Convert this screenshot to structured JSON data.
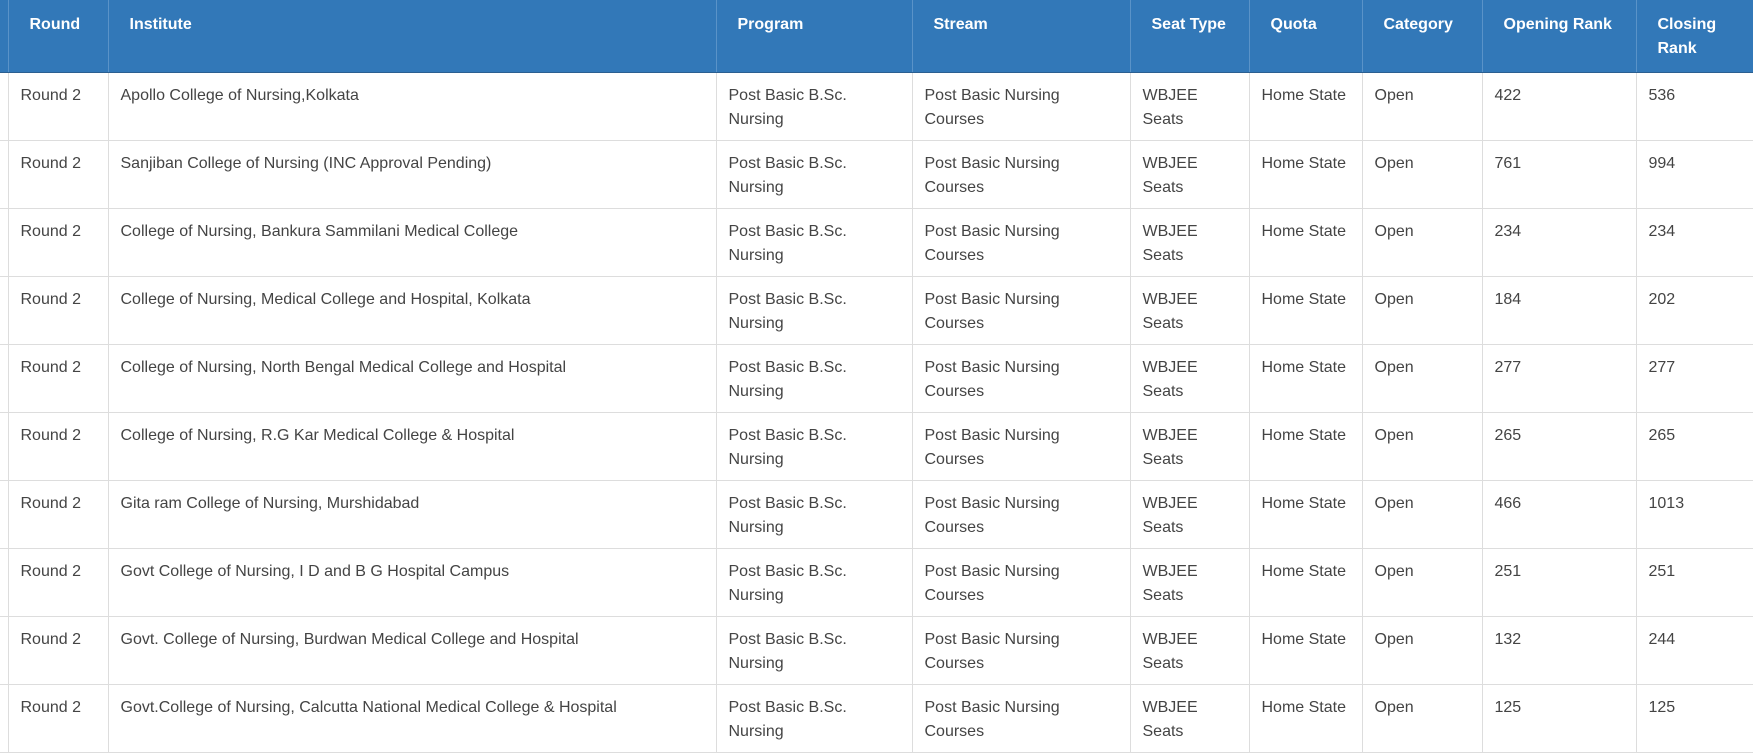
{
  "table": {
    "headers": [
      "Round",
      "Institute",
      "Program",
      "Stream",
      "Seat Type",
      "Quota",
      "Category",
      "Opening Rank",
      "Closing Rank"
    ],
    "rows": [
      [
        "Round 2",
        "Apollo College of Nursing,Kolkata",
        "Post Basic B.Sc. Nursing",
        "Post Basic Nursing Courses",
        "WBJEE Seats",
        "Home State",
        "Open",
        422,
        536
      ],
      [
        "Round 2",
        "Sanjiban College of Nursing (INC Approval Pending)",
        "Post Basic B.Sc. Nursing",
        "Post Basic Nursing Courses",
        "WBJEE Seats",
        "Home State",
        "Open",
        761,
        994
      ],
      [
        "Round 2",
        "College of Nursing, Bankura Sammilani Medical College",
        "Post Basic B.Sc. Nursing",
        "Post Basic Nursing Courses",
        "WBJEE Seats",
        "Home State",
        "Open",
        234,
        234
      ],
      [
        "Round 2",
        "College of Nursing, Medical College and Hospital, Kolkata",
        "Post Basic B.Sc. Nursing",
        "Post Basic Nursing Courses",
        "WBJEE Seats",
        "Home State",
        "Open",
        184,
        202
      ],
      [
        "Round 2",
        "College of Nursing, North Bengal Medical College and Hospital",
        "Post Basic B.Sc. Nursing",
        "Post Basic Nursing Courses",
        "WBJEE Seats",
        "Home State",
        "Open",
        277,
        277
      ],
      [
        "Round 2",
        "College of Nursing, R.G Kar Medical College & Hospital",
        "Post Basic B.Sc. Nursing",
        "Post Basic Nursing Courses",
        "WBJEE Seats",
        "Home State",
        "Open",
        265,
        265
      ],
      [
        "Round 2",
        "Gita ram College of Nursing, Murshidabad",
        "Post Basic B.Sc. Nursing",
        "Post Basic Nursing Courses",
        "WBJEE Seats",
        "Home State",
        "Open",
        466,
        1013
      ],
      [
        "Round 2",
        "Govt College of Nursing, I D and B G Hospital Campus",
        "Post Basic B.Sc. Nursing",
        "Post Basic Nursing Courses",
        "WBJEE Seats",
        "Home State",
        "Open",
        251,
        251
      ],
      [
        "Round 2",
        "Govt. College of Nursing, Burdwan Medical College and Hospital",
        "Post Basic B.Sc. Nursing",
        "Post Basic Nursing Courses",
        "WBJEE Seats",
        "Home State",
        "Open",
        132,
        244
      ],
      [
        "Round 2",
        "Govt.College of Nursing, Calcutta National Medical College & Hospital",
        "Post Basic B.Sc. Nursing",
        "Post Basic Nursing Courses",
        "WBJEE Seats",
        "Home State",
        "Open",
        125,
        125
      ]
    ]
  }
}
